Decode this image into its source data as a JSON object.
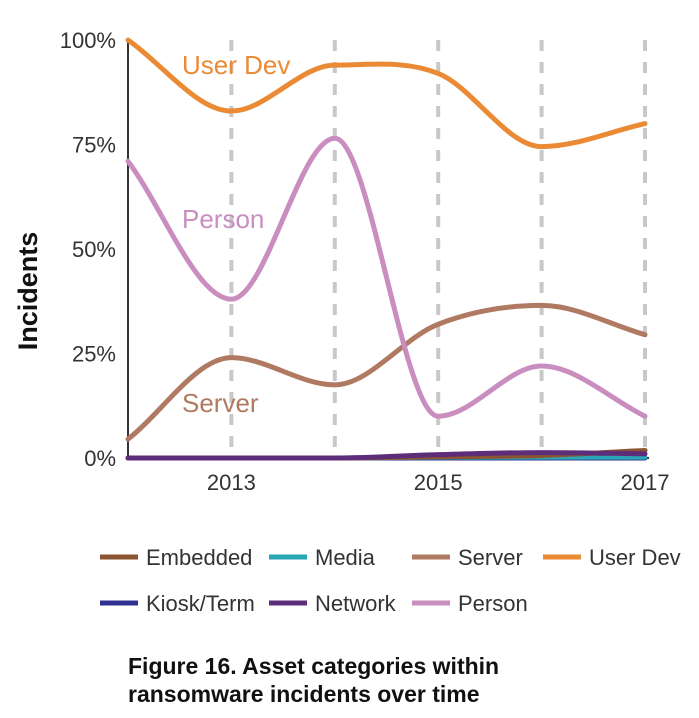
{
  "chart_data": {
    "type": "line",
    "ylabel": "Incidents",
    "xlabel": "",
    "ylim": [
      0,
      100
    ],
    "xlim": [
      2012,
      2017
    ],
    "yticks": [
      "0%",
      "25%",
      "50%",
      "75%",
      "100%"
    ],
    "xticks": [
      "2013",
      "2015",
      "2017"
    ],
    "x": [
      2012,
      2013,
      2014,
      2015,
      2016,
      2017
    ],
    "grid": "vertical dashed lines at each year",
    "series": [
      {
        "name": "User Dev",
        "color": "#EB8A35",
        "values": [
          100,
          83,
          94,
          92,
          74.5,
          80
        ]
      },
      {
        "name": "Person",
        "color": "#C98DBF",
        "values": [
          71,
          38,
          76.5,
          10,
          22,
          10
        ]
      },
      {
        "name": "Server",
        "color": "#B07A62",
        "values": [
          4.5,
          24,
          17.5,
          32,
          36.5,
          29.5
        ]
      },
      {
        "name": "Embedded",
        "color": "#8B5532",
        "values": [
          0,
          0,
          0,
          0.3,
          0.6,
          1.8
        ]
      },
      {
        "name": "Media",
        "color": "#2AA7B5",
        "values": [
          0,
          0,
          0,
          0.2,
          0.2,
          0.2
        ]
      },
      {
        "name": "Kiosk/Term",
        "color": "#2E3192",
        "values": [
          0,
          0,
          0,
          0,
          0,
          0
        ]
      },
      {
        "name": "Network",
        "color": "#5E2D79",
        "values": [
          0,
          0,
          0,
          0.8,
          1.3,
          1
        ]
      }
    ],
    "annotations": [
      {
        "text": "User Dev",
        "series": "User Dev"
      },
      {
        "text": "Person",
        "series": "Person"
      },
      {
        "text": "Server",
        "series": "Server"
      }
    ],
    "legend": {
      "placement": "bottom",
      "rows": [
        [
          "Embedded",
          "Media",
          "Server",
          "User Dev"
        ],
        [
          "Kiosk/Term",
          "Network",
          "Person"
        ]
      ]
    }
  },
  "caption": {
    "line1": "Figure 16.  Asset categories within",
    "line2": "ransomware incidents over time"
  }
}
